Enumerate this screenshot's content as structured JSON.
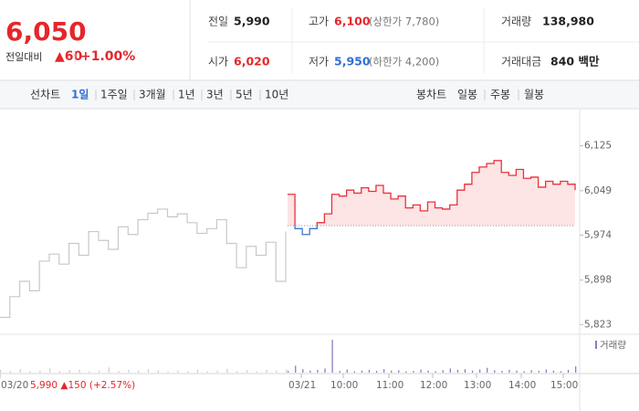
{
  "header": {
    "price": "6,050",
    "change_label": "전일대비",
    "change": "▲60",
    "change_pct": "+1.00%",
    "stats": [
      {
        "label": "전일",
        "value": "5,990"
      },
      {
        "label": "고가",
        "value": "6,100",
        "note": "(상한가 7,780)"
      },
      {
        "label": "거래량",
        "value": "138,980"
      },
      {
        "label": "시가",
        "value": "6,020"
      },
      {
        "label": "저가",
        "value": "5,950",
        "note": "(하한가 4,200)"
      },
      {
        "label": "거래대금",
        "value": "840 백만"
      }
    ]
  },
  "tabs": {
    "line_label": "선차트",
    "line": [
      "1일",
      "1주일",
      "3개월",
      "1년",
      "3년",
      "5년",
      "10년"
    ],
    "candle_label": "봉차트",
    "candle": [
      "일봉",
      "주봉",
      "월봉"
    ]
  },
  "chart_data": {
    "type": "line",
    "ylim": [
      5808,
      6183
    ],
    "yticks": [
      {
        "value": 6125,
        "label": "6,125"
      },
      {
        "value": 6049,
        "label": "6,049"
      },
      {
        "value": 5974,
        "label": "5,974"
      },
      {
        "value": 5898,
        "label": "5,898"
      },
      {
        "value": 5823,
        "label": "5,823"
      }
    ],
    "baseline": 5990,
    "xlabels": [
      "03/20",
      "03/21",
      "10:00",
      "11:00",
      "12:00",
      "13:00",
      "14:00",
      "15:00"
    ],
    "prev_note": "5,990 ▲150 (+2.57%)",
    "volume_name": "거래량",
    "volume_lim": [
      0,
      100
    ],
    "series": [
      {
        "color": "#c8c8c8",
        "volume_color": "#cfcfcf",
        "values": [
          5835,
          5870,
          5896,
          5880,
          5930,
          5942,
          5925,
          5960,
          5940,
          5980,
          5965,
          5950,
          5988,
          5975,
          6000,
          6011,
          6018,
          6005,
          6010,
          5995,
          5977,
          5985,
          6000,
          5960,
          5919,
          5955,
          5940,
          5962,
          5896,
          5980
        ],
        "volume": [
          8,
          5,
          10,
          4,
          6,
          12,
          5,
          7,
          9,
          4,
          6,
          15,
          5,
          8,
          6,
          10,
          7,
          4,
          6,
          5,
          9,
          4,
          6,
          11,
          5,
          7,
          4,
          8,
          6,
          9
        ]
      },
      {
        "color": "#e8323c",
        "below_color": "#3a76c8",
        "fill": "#fde4e5",
        "volume_color": "#8e7cc3",
        "values": [
          6043,
          5985,
          5975,
          5985,
          5995,
          6010,
          6043,
          6040,
          6050,
          6045,
          6054,
          6048,
          6058,
          6045,
          6035,
          6040,
          6020,
          6025,
          6015,
          6030,
          6020,
          6018,
          6025,
          6050,
          6060,
          6080,
          6089,
          6095,
          6100,
          6080,
          6075,
          6085,
          6070,
          6072,
          6055,
          6065,
          6060,
          6065,
          6060,
          6050
        ],
        "volume": [
          5,
          20,
          10,
          6,
          8,
          12,
          95,
          5,
          9,
          4,
          6,
          8,
          5,
          10,
          6,
          7,
          4,
          5,
          9,
          6,
          4,
          7,
          12,
          8,
          10,
          6,
          9,
          14,
          7,
          5,
          8,
          6,
          4,
          7,
          5,
          9,
          6,
          4,
          8,
          18
        ]
      }
    ]
  }
}
